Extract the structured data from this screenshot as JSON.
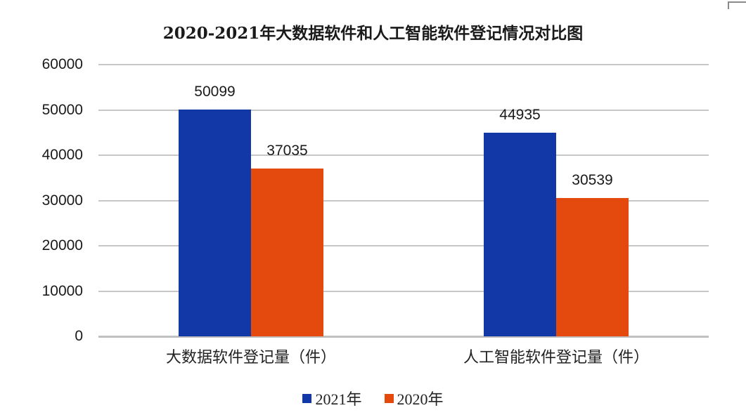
{
  "chart_data": {
    "type": "bar",
    "title": "2020-2021年大数据软件和人工智能软件登记情况对比图",
    "categories": [
      "大数据软件登记量（件）",
      "人工智能软件登记量（件）"
    ],
    "series": [
      {
        "name": "2021年",
        "color": "#1237A6",
        "values": [
          50099,
          44935
        ]
      },
      {
        "name": "2020年",
        "color": "#E4490E",
        "values": [
          37035,
          30539
        ]
      }
    ],
    "ylim": [
      0,
      60000
    ],
    "ytick_step": 10000,
    "ytick_labels": [
      "0",
      "10000",
      "20000",
      "30000",
      "40000",
      "50000",
      "60000"
    ],
    "xlabel": "",
    "ylabel": "",
    "grid": true,
    "data_labels": true,
    "legend_position": "bottom"
  },
  "colors": {
    "background": "#FFFFFF",
    "gridline": "#C7C7C7",
    "axis_line": "#C0C0C0",
    "text": "#1A1A1A",
    "corner_mark": "#8A8A8A"
  }
}
